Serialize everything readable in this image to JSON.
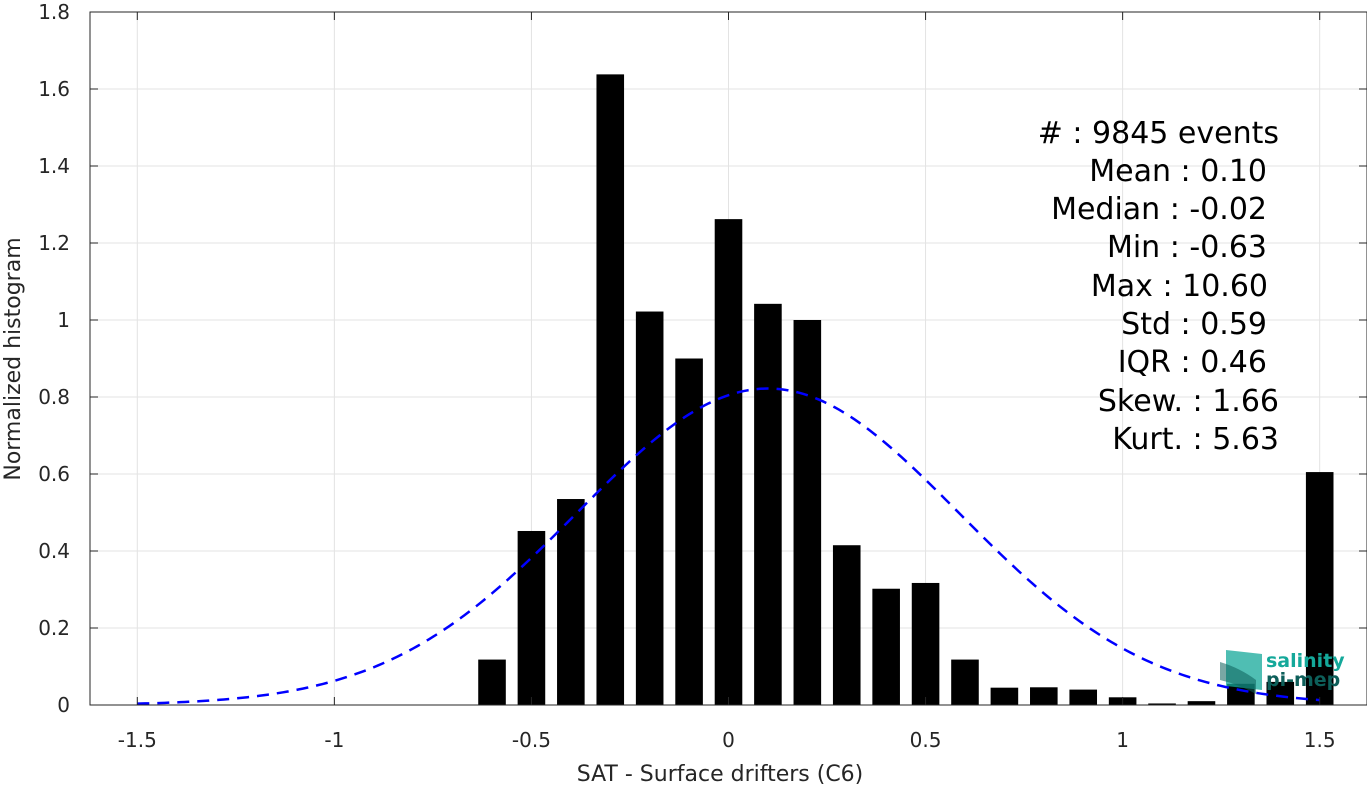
{
  "chart_data": {
    "type": "bar",
    "xlabel": "SAT - Surface drifters (C6)",
    "ylabel": "Normalized histogram",
    "xlim": [
      -1.62,
      1.62
    ],
    "ylim": [
      0,
      1.8
    ],
    "x_ticks": [
      -1.5,
      -1,
      -0.5,
      0,
      0.5,
      1,
      1.5
    ],
    "x_tick_labels": [
      "-1.5",
      "-1",
      "-0.5",
      "0",
      "0.5",
      "1",
      "1.5"
    ],
    "y_ticks": [
      0,
      0.2,
      0.4,
      0.6,
      0.8,
      1,
      1.2,
      1.4,
      1.6,
      1.8
    ],
    "y_tick_labels": [
      "0",
      "0.2",
      "0.4",
      "0.6",
      "0.8",
      "1",
      "1.2",
      "1.4",
      "1.6",
      "1.8"
    ],
    "grid": true,
    "bar_width": 0.07,
    "bar_color": "#000000",
    "bars": {
      "x": [
        -0.6,
        -0.5,
        -0.4,
        -0.3,
        -0.2,
        -0.1,
        0.0,
        0.1,
        0.2,
        0.3,
        0.4,
        0.5,
        0.6,
        0.7,
        0.8,
        0.9,
        1.0,
        1.1,
        1.2,
        1.3,
        1.4,
        1.5
      ],
      "values": [
        0.118,
        0.452,
        0.535,
        1.638,
        1.022,
        0.9,
        1.262,
        1.042,
        1.0,
        0.415,
        0.302,
        0.317,
        0.118,
        0.045,
        0.046,
        0.04,
        0.02,
        0.004,
        0.01,
        0.055,
        0.06,
        0.605
      ]
    },
    "fit_curve": {
      "style": "dashed",
      "color": "#0000ff",
      "mean": 0.1,
      "std": 0.485,
      "peak": 0.822,
      "x_range": [
        -1.5,
        1.5
      ]
    },
    "annotation_lines": [
      "#  : 9845 events",
      "Mean : 0.10",
      "Median : -0.02",
      "Min : -0.63",
      "Max : 10.60",
      "Std : 0.59",
      "IQR : 0.46",
      "Skew. : 1.66",
      "Kurt. : 5.63"
    ]
  },
  "logo": {
    "line1": "salinity",
    "line2": "pi-mep",
    "color1": "#14a89a",
    "color2": "#0d5f5a"
  }
}
